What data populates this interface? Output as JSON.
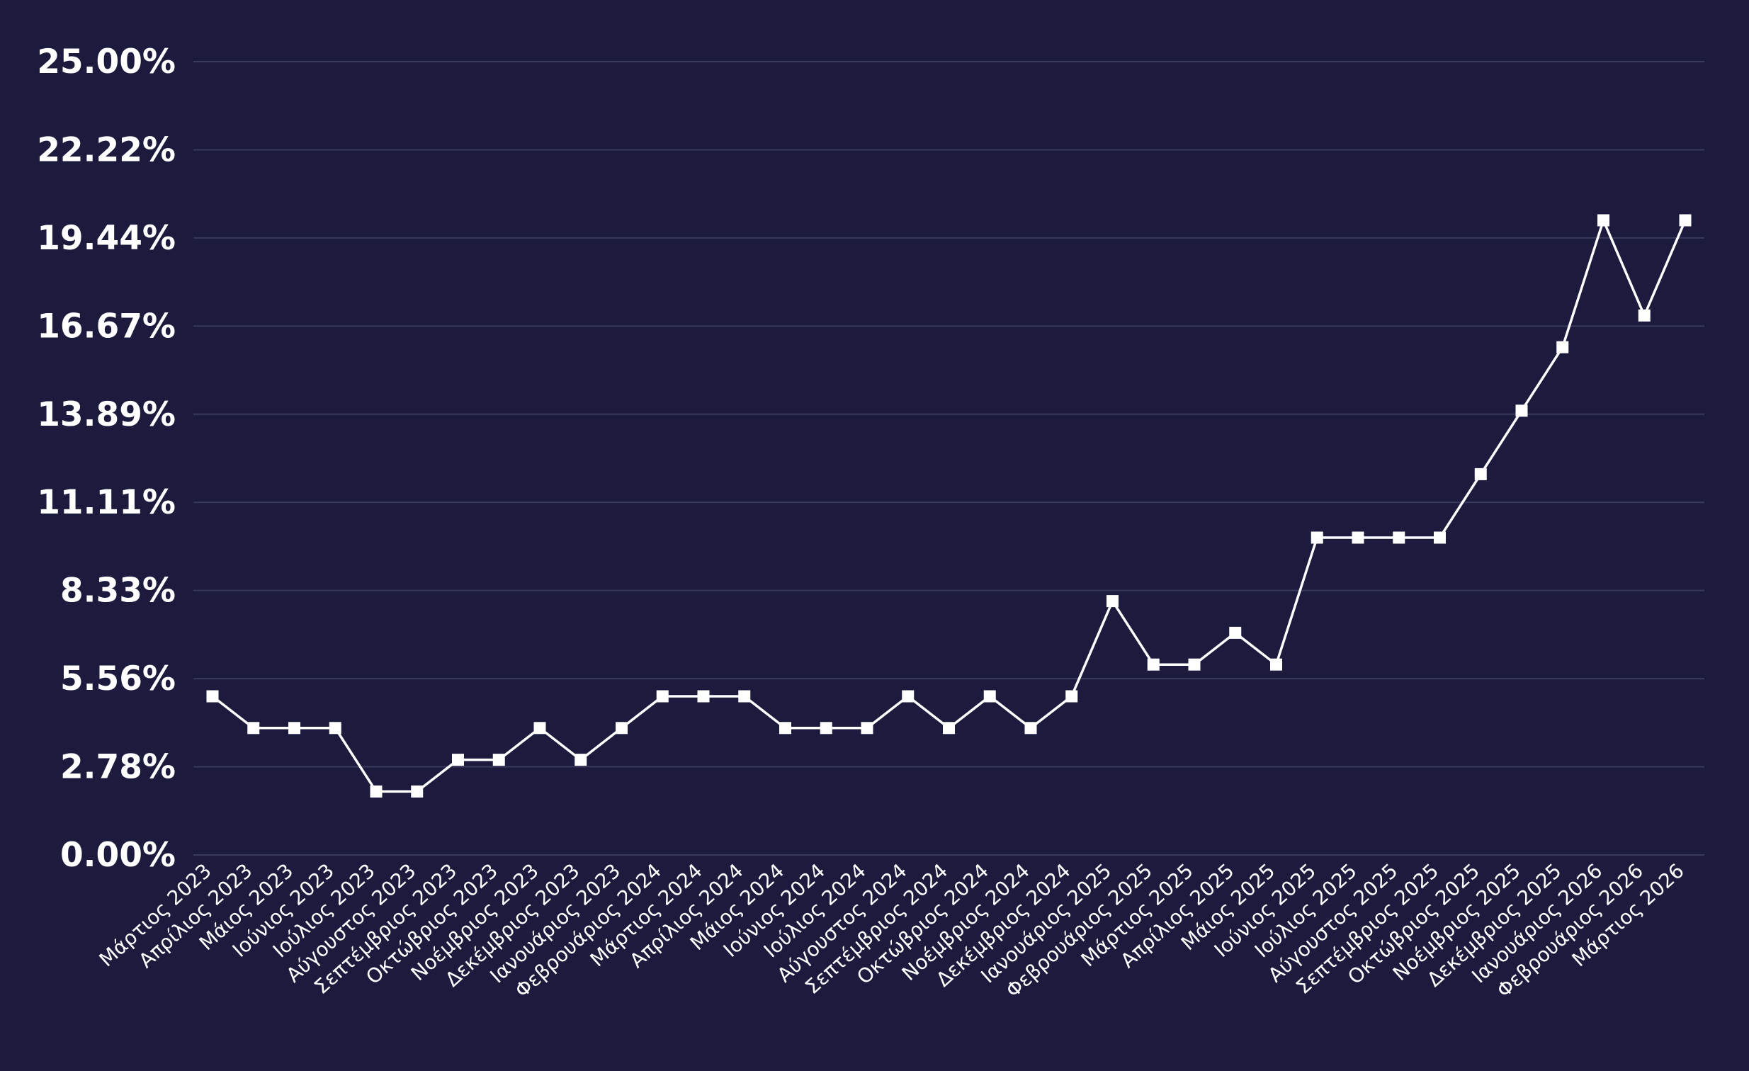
{
  "colors": {
    "background": "#1c1b3e",
    "series": "#ffffff",
    "grid": "#3a3a5c",
    "text": "#ffffff"
  },
  "chart_data": {
    "type": "line",
    "title": "",
    "xlabel": "",
    "ylabel": "",
    "grid": true,
    "legend": "none",
    "marker": "square",
    "ylim": [
      0,
      25
    ],
    "y_ticks": [
      "0.00%",
      "2.78%",
      "5.56%",
      "8.33%",
      "11.11%",
      "13.89%",
      "16.67%",
      "19.44%",
      "22.22%",
      "25.00%"
    ],
    "categories": [
      "Μάρτιος 2023",
      "Απρίλιος 2023",
      "Μάιος 2023",
      "Ιούνιος 2023",
      "Ιούλιος 2023",
      "Αύγουστος 2023",
      "Σεπτέμβριος 2023",
      "Οκτώβριος 2023",
      "Νοέμβριος 2023",
      "Δεκέμβριος 2023",
      "Ιανουάριος 2023",
      "Φεβρουάριος 2024",
      "Μάρτιος 2024",
      "Απρίλιος 2024",
      "Μάιος 2024",
      "Ιούνιος 2024",
      "Ιούλιος 2024",
      "Αύγουστος 2024",
      "Σεπτέμβριος 2024",
      "Οκτώβριος 2024",
      "Νοέμβριος 2024",
      "Δεκέμβριος 2024",
      "Ιανουάριος 2025",
      "Φεβρουάριος 2025",
      "Μάρτιος 2025",
      "Απρίλιος 2025",
      "Μάιος 2025",
      "Ιούνιος 2025",
      "Ιούλιος 2025",
      "Αύγουστος 2025",
      "Σεπτέμβριος 2025",
      "Οκτώβριος 2025",
      "Νοέμβριος 2025",
      "Δεκέμβριος 2025",
      "Ιανουάριος 2026",
      "Φεβρουάριος 2026",
      "Μάρτιος 2026"
    ],
    "series": [
      {
        "values": [
          5,
          4,
          4,
          4,
          2,
          2,
          3,
          3,
          4,
          3,
          4,
          5,
          5,
          5,
          4,
          4,
          4,
          5,
          4,
          5,
          4,
          5,
          8,
          6,
          6,
          7,
          6,
          10,
          10,
          10,
          10,
          12,
          14,
          16,
          20,
          17,
          20
        ]
      }
    ]
  }
}
